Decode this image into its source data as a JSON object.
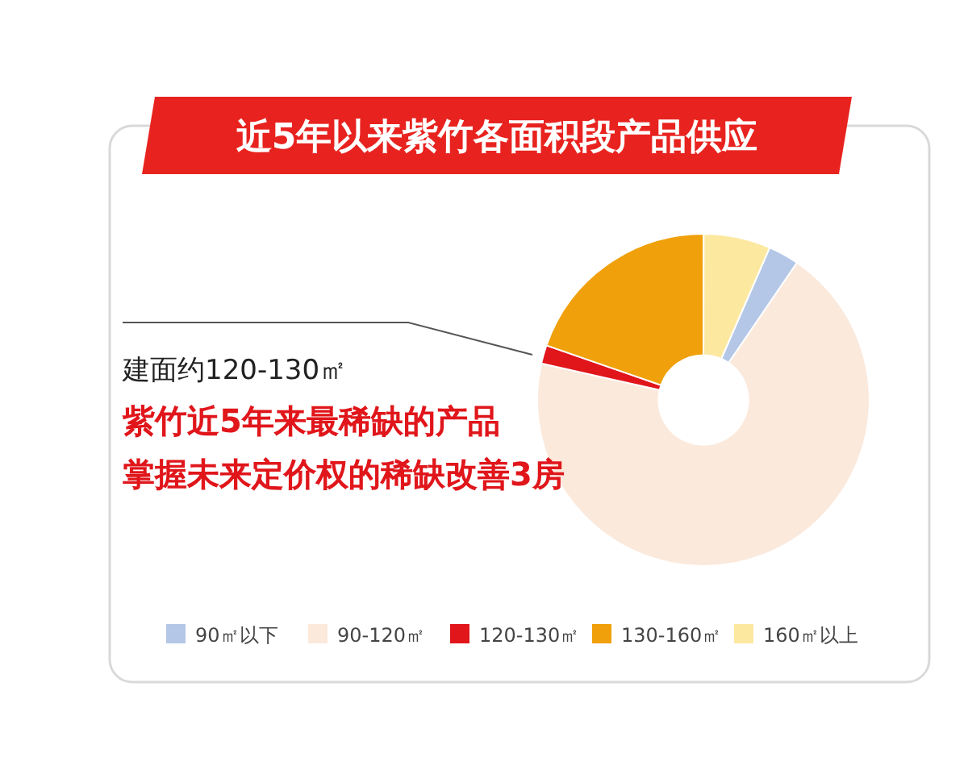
{
  "chart_data": {
    "type": "donut",
    "title": "近5年以来紫竹各面积段产品供应",
    "categories": [
      "90㎡以下",
      "90-120㎡",
      "120-130㎡",
      "130-160㎡",
      "160㎡以上"
    ],
    "values": [
      3,
      69,
      1.8,
      19.7,
      6.5
    ],
    "colors": [
      "#b4c7e7",
      "#fbe9dc",
      "#e0161b",
      "#f0a00a",
      "#fde8a0"
    ],
    "annotations": [
      "建面约120-130㎡",
      "紫竹近5年来最稀缺的产品",
      "掌握未来定价权的稀缺改善3房"
    ],
    "legend": "bottom"
  }
}
